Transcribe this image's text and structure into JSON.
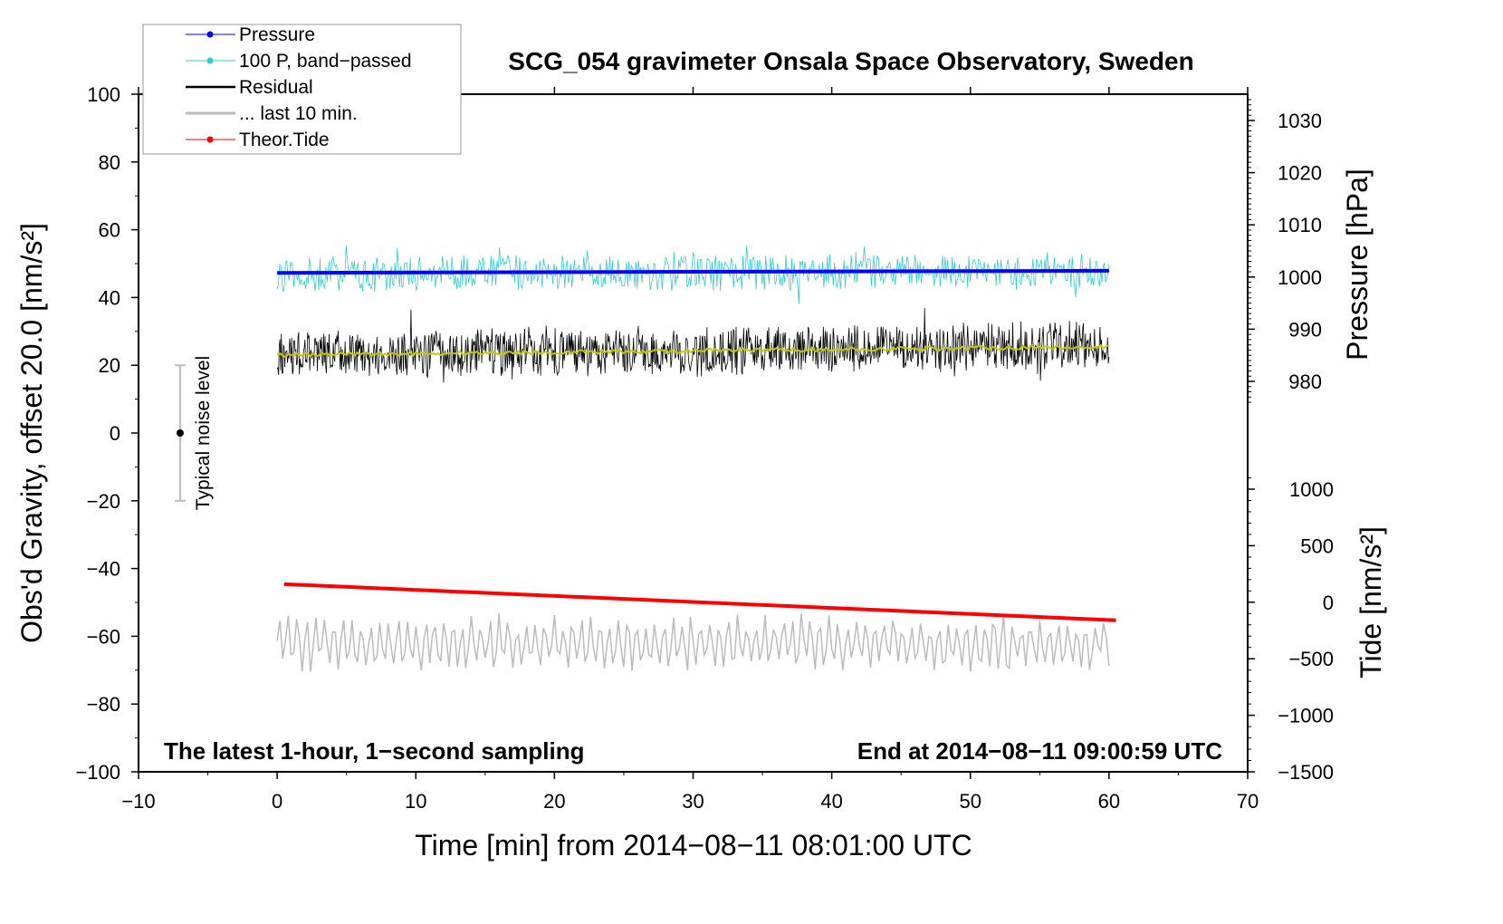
{
  "chart_data": {
    "type": "line",
    "title": "SCG_054 gravimeter Onsala Space Observatory, Sweden",
    "xlabel": "Time [min] from 2014−08−11 08:01:00 UTC",
    "ylabel": "Obs'd Gravity, offset 20.0 [nm/s²]",
    "ylabel_right_top": "Pressure [hPa]",
    "ylabel_right_bottom": "Tide [nm/s²]",
    "xlim": [
      -10,
      70
    ],
    "ylim": [
      -100,
      100
    ],
    "pressure_lim": [
      980,
      1030
    ],
    "tide_lim": [
      -1500,
      1000
    ],
    "x_ticks": [
      "−10",
      "0",
      "10",
      "20",
      "30",
      "40",
      "50",
      "60",
      "70"
    ],
    "x_tick_values": [
      -10,
      0,
      10,
      20,
      30,
      40,
      50,
      60,
      70
    ],
    "y_ticks": [
      "100",
      "80",
      "60",
      "40",
      "20",
      "0",
      "−20",
      "−40",
      "−60",
      "−80",
      "−100"
    ],
    "y_tick_values": [
      100,
      80,
      60,
      40,
      20,
      0,
      -20,
      -40,
      -60,
      -80,
      -100
    ],
    "pressure_ticks": [
      "1030",
      "1020",
      "1010",
      "1000",
      "990",
      "980"
    ],
    "pressure_tick_values": [
      1030,
      1020,
      1010,
      1000,
      990,
      980
    ],
    "tide_ticks": [
      "1000",
      "500",
      "0",
      "−500",
      "−1000",
      "−1500"
    ],
    "tide_tick_values": [
      1000,
      500,
      0,
      -500,
      -1000,
      -1500
    ],
    "annotation_left": "The latest 1-hour, 1−second sampling",
    "annotation_right": "End at 2014−08−11 09:00:59 UTC",
    "noise_label": "Typical noise level",
    "noise_bar": {
      "x": -7,
      "center": 0,
      "half_range": 20
    },
    "legend_position": "top-left",
    "legend": [
      "Pressure",
      "100 P, band−passed",
      "Residual",
      "... last 10 min.",
      "Theor.Tide"
    ],
    "series": [
      {
        "name": "Pressure",
        "axis": "pressure",
        "color": "#0000ff",
        "x": [
          0,
          60
        ],
        "values": [
          1000.8,
          1001.2
        ]
      },
      {
        "name": "100 P, band−passed",
        "axis": "gravity",
        "color": "#33cccc",
        "x": [
          0,
          60
        ],
        "baseline": [
          47,
          48
        ],
        "noise_amplitude": 6
      },
      {
        "name": "Residual",
        "axis": "gravity",
        "color": "#000000",
        "x": [
          0,
          60
        ],
        "baseline": [
          23,
          25.5
        ],
        "noise_amplitude": 8
      },
      {
        "name": "Residual smoothed",
        "axis": "gravity",
        "color": "#c8c800",
        "x": [
          0,
          60
        ],
        "values": [
          23,
          25.5
        ]
      },
      {
        "name": "... last 10 min.",
        "axis": "gravity",
        "color": "#bbbbbb",
        "x": [
          0,
          60
        ],
        "baseline": [
          -62,
          -62
        ],
        "noise_amplitude": 8
      },
      {
        "name": "Theor.Tide",
        "axis": "tide",
        "color": "#ff0000",
        "x": [
          0.5,
          60.5
        ],
        "values": [
          160,
          -160
        ]
      }
    ]
  }
}
